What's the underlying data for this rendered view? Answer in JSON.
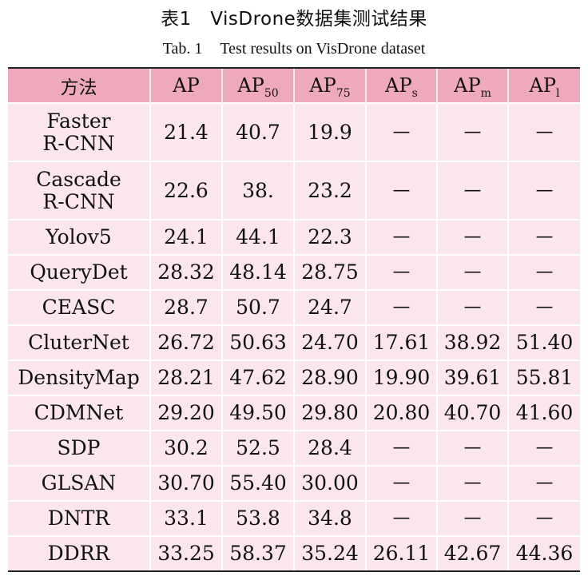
{
  "caption": {
    "cn": "表1　VisDrone数据集测试结果",
    "en_label": "Tab. 1",
    "en_text": "Test results on VisDrone dataset"
  },
  "table": {
    "headers": [
      {
        "main": "方法",
        "sub": ""
      },
      {
        "main": "AP",
        "sub": ""
      },
      {
        "main": "AP",
        "sub": "50"
      },
      {
        "main": "AP",
        "sub": "75"
      },
      {
        "main": "AP",
        "sub": "s"
      },
      {
        "main": "AP",
        "sub": "m"
      },
      {
        "main": "AP",
        "sub": "l"
      }
    ],
    "rows": [
      {
        "method": [
          "Faster",
          "R-CNN"
        ],
        "values": [
          "21.4",
          "40.7",
          "19.9",
          "—",
          "—",
          "—"
        ]
      },
      {
        "method": [
          "Cascade",
          "R-CNN"
        ],
        "values": [
          "22.6",
          "38.",
          "23.2",
          "—",
          "—",
          "—"
        ]
      },
      {
        "method": [
          "Yolov5"
        ],
        "values": [
          "24.1",
          "44.1",
          "22.3",
          "—",
          "—",
          "—"
        ]
      },
      {
        "method": [
          "QueryDet"
        ],
        "values": [
          "28.32",
          "48.14",
          "28.75",
          "—",
          "—",
          "—"
        ]
      },
      {
        "method": [
          "CEASC"
        ],
        "values": [
          "28.7",
          "50.7",
          "24.7",
          "—",
          "—",
          "—"
        ]
      },
      {
        "method": [
          "CluterNet"
        ],
        "values": [
          "26.72",
          "50.63",
          "24.70",
          "17.61",
          "38.92",
          "51.40"
        ]
      },
      {
        "method": [
          "DensityMap"
        ],
        "values": [
          "28.21",
          "47.62",
          "28.90",
          "19.90",
          "39.61",
          "55.81"
        ]
      },
      {
        "method": [
          "CDMNet"
        ],
        "values": [
          "29.20",
          "49.50",
          "29.80",
          "20.80",
          "40.70",
          "41.60"
        ]
      },
      {
        "method": [
          "SDP"
        ],
        "values": [
          "30.2",
          "52.5",
          "28.4",
          "—",
          "—",
          "—"
        ]
      },
      {
        "method": [
          "GLSAN"
        ],
        "values": [
          "30.70",
          "55.40",
          "30.00",
          "—",
          "—",
          "—"
        ]
      },
      {
        "method": [
          "DNTR"
        ],
        "values": [
          "33.1",
          "53.8",
          "34.8",
          "—",
          "—",
          "—"
        ]
      },
      {
        "method": [
          "DDRR"
        ],
        "values": [
          "33.25",
          "58.37",
          "35.24",
          "26.11",
          "42.67",
          "44.36"
        ]
      }
    ]
  },
  "colors": {
    "header_bg": "#eeaabc",
    "row_bg": "#fbe6eb",
    "rule": "#222222"
  }
}
